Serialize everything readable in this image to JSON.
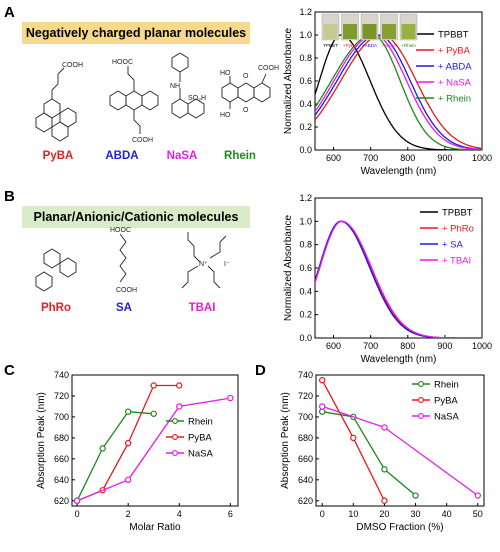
{
  "panels": {
    "A": {
      "letter": "A",
      "banner": "Negatively charged planar molecules",
      "molecules": [
        {
          "name": "PyBA",
          "color": "#e32020"
        },
        {
          "name": "ABDA",
          "color": "#2020dd"
        },
        {
          "name": "NaSA",
          "color": "#e020e0"
        },
        {
          "name": "Rhein",
          "color": "#1f8a1f"
        }
      ]
    },
    "B": {
      "letter": "B",
      "banner": "Planar/Anionic/Cationic molecules",
      "molecules": [
        {
          "name": "PhRo",
          "color": "#e32020"
        },
        {
          "name": "SA",
          "color": "#2020dd"
        },
        {
          "name": "TBAI",
          "color": "#e020e0"
        }
      ]
    },
    "C": {
      "letter": "C"
    },
    "D": {
      "letter": "D"
    }
  },
  "structure_text": {
    "pyba_acid": "COOH",
    "abda_acid1": "HOOC",
    "abda_acid2": "COOH",
    "nasa_nh": "NH",
    "nasa_so3": "SO₃H",
    "rhein_cooh": "COOH",
    "rhein_ho1": "HO",
    "rhein_ho2": "HO",
    "rhein_o1": "O",
    "rhein_o2": "O",
    "sa_top": "HOOC",
    "sa_bottom": "COOH",
    "tbai_n": "N⁺",
    "tbai_i": "I⁻"
  },
  "vials": [
    "TPBBT",
    "+PyBA",
    "+ABDA",
    "+NaSA",
    "+Rhein"
  ],
  "colors": {
    "black": "#000000",
    "red": "#e8191b",
    "blue": "#1a1ae6",
    "magenta": "#e81ae8",
    "green": "#1a8a1a",
    "banner": "#f7d98e",
    "banner_b": "#d9ecc8"
  },
  "chart_data": [
    {
      "id": "A",
      "type": "line",
      "xlabel": "Wavelength (nm)",
      "ylabel": "Normalized Absorbance",
      "xlim": [
        550,
        1000
      ],
      "ylim": [
        0,
        1.2
      ],
      "xticks": [
        600,
        700,
        800,
        900,
        1000
      ],
      "yticks": [
        0.0,
        0.2,
        0.4,
        0.6,
        0.8,
        1.0,
        1.2
      ],
      "legend_position": "right",
      "series": [
        {
          "name": "TPBBT",
          "color": "#000000",
          "peak": 620,
          "sl": 58,
          "sr": 78,
          "x": [
            550,
            575,
            600,
            620,
            650,
            700,
            750,
            800,
            850,
            900
          ],
          "y": [
            0.53,
            0.76,
            0.93,
            1.0,
            0.93,
            0.55,
            0.21,
            0.06,
            0.01,
            0.0
          ]
        },
        {
          "name": "+ PyBA",
          "color": "#e8191b",
          "peak": 730,
          "sl": 110,
          "sr": 92,
          "x": [
            550,
            600,
            650,
            700,
            730,
            750,
            800,
            850,
            900
          ],
          "y": [
            0.39,
            0.53,
            0.72,
            0.93,
            1.0,
            0.97,
            0.75,
            0.28,
            0.04
          ]
        },
        {
          "name": "+ ABDA",
          "color": "#1a1ae6",
          "peak": 720,
          "sl": 110,
          "sr": 86,
          "x": [
            550,
            600,
            650,
            700,
            720,
            750,
            800,
            850,
            900
          ],
          "y": [
            0.39,
            0.54,
            0.74,
            0.95,
            1.0,
            0.95,
            0.68,
            0.22,
            0.03
          ]
        },
        {
          "name": "+ NaSA",
          "color": "#e81ae8",
          "peak": 710,
          "sl": 108,
          "sr": 86,
          "x": [
            550,
            600,
            650,
            700,
            710,
            750,
            800,
            850,
            900
          ],
          "y": [
            0.39,
            0.56,
            0.78,
            0.98,
            1.0,
            0.92,
            0.6,
            0.18,
            0.02
          ]
        },
        {
          "name": "+ Rhein",
          "color": "#1a8a1a",
          "peak": 705,
          "sl": 110,
          "sr": 74,
          "x": [
            550,
            600,
            650,
            700,
            705,
            750,
            800,
            850,
            900
          ],
          "y": [
            0.6,
            0.66,
            0.82,
            0.99,
            1.0,
            0.87,
            0.52,
            0.12,
            0.01
          ]
        }
      ]
    },
    {
      "id": "B",
      "type": "line",
      "xlabel": "Wavelength (nm)",
      "ylabel": "Normalized Absorbance",
      "xlim": [
        550,
        1000
      ],
      "ylim": [
        0,
        1.2
      ],
      "xticks": [
        600,
        700,
        800,
        900,
        1000
      ],
      "yticks": [
        0.0,
        0.2,
        0.4,
        0.6,
        0.8,
        1.0,
        1.2
      ],
      "legend_position": "top-right",
      "series": [
        {
          "name": "TPBBT",
          "color": "#000000",
          "peak": 620,
          "sl": 58,
          "sr": 78,
          "x": [
            550,
            600,
            620,
            650,
            700,
            750,
            800,
            900
          ],
          "y": [
            0.53,
            0.93,
            1.0,
            0.93,
            0.55,
            0.21,
            0.06,
            0.0
          ]
        },
        {
          "name": "+ PhRo",
          "color": "#e8191b",
          "peak": 621,
          "sl": 58,
          "sr": 79,
          "x": [
            550,
            600,
            621,
            650,
            700,
            750,
            800,
            900
          ],
          "y": [
            0.53,
            0.93,
            1.0,
            0.93,
            0.56,
            0.22,
            0.06,
            0.0
          ]
        },
        {
          "name": "+ SA",
          "color": "#1a1ae6",
          "peak": 619,
          "sl": 58,
          "sr": 78,
          "x": [
            550,
            600,
            619,
            650,
            700,
            750,
            800,
            900
          ],
          "y": [
            0.53,
            0.93,
            1.0,
            0.93,
            0.55,
            0.21,
            0.06,
            0.0
          ]
        },
        {
          "name": "+ TBAI",
          "color": "#e81ae8",
          "peak": 622,
          "sl": 59,
          "sr": 80,
          "x": [
            550,
            600,
            622,
            650,
            700,
            750,
            800,
            900
          ],
          "y": [
            0.53,
            0.92,
            1.0,
            0.94,
            0.57,
            0.23,
            0.07,
            0.0
          ]
        }
      ]
    },
    {
      "id": "C",
      "type": "line",
      "xlabel": "Molar Ratio",
      "ylabel": "Absorption Peak (nm)",
      "xlim": [
        -0.2,
        6.3
      ],
      "ylim": [
        615,
        740
      ],
      "xticks": [
        0,
        2,
        4,
        6
      ],
      "yticks": [
        620,
        640,
        660,
        680,
        700,
        720,
        740
      ],
      "legend_position": "center-right",
      "series": [
        {
          "name": "Rhein",
          "color": "#1a8a1a",
          "x": [
            0,
            1,
            2,
            3
          ],
          "y": [
            620,
            670,
            705,
            703
          ]
        },
        {
          "name": "PyBA",
          "color": "#e8191b",
          "x": [
            0,
            1,
            2,
            3,
            4
          ],
          "y": [
            620,
            630,
            675,
            730,
            730
          ]
        },
        {
          "name": "NaSA",
          "color": "#e81ae8",
          "x": [
            0,
            2,
            4,
            6
          ],
          "y": [
            620,
            640,
            710,
            718
          ]
        }
      ]
    },
    {
      "id": "D",
      "type": "line",
      "xlabel": "DMSO Fraction (%)",
      "ylabel": "Absorption Peak (nm)",
      "xlim": [
        -2,
        52
      ],
      "ylim": [
        615,
        740
      ],
      "xticks": [
        0,
        10,
        20,
        30,
        40,
        50
      ],
      "yticks": [
        620,
        640,
        660,
        680,
        700,
        720,
        740
      ],
      "legend_position": "top-right",
      "series": [
        {
          "name": "Rhein",
          "color": "#1a8a1a",
          "x": [
            0,
            10,
            20,
            30
          ],
          "y": [
            705,
            700,
            650,
            625
          ]
        },
        {
          "name": "PyBA",
          "color": "#e8191b",
          "x": [
            0,
            10,
            20
          ],
          "y": [
            735,
            680,
            620
          ]
        },
        {
          "name": "NaSA",
          "color": "#e81ae8",
          "x": [
            0,
            20,
            50
          ],
          "y": [
            710,
            690,
            625
          ]
        }
      ]
    }
  ]
}
